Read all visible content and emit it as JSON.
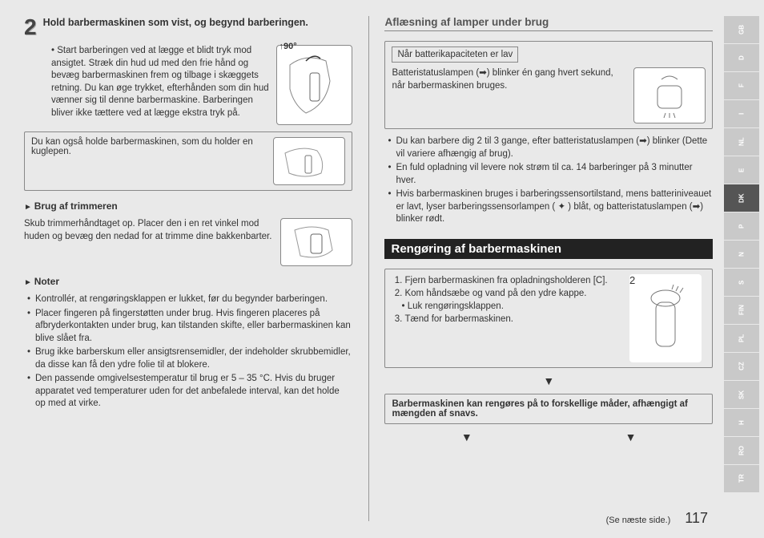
{
  "left": {
    "step_number": "2",
    "step_title": "Hold barbermaskinen som vist, og begynd barberingen.",
    "step_bullet": "Start barberingen ved at lægge et blidt tryk mod ansigtet. Stræk din hud ud med den frie hånd og bevæg barbermaskinen frem og tilbage i skæggets retning. Du kan øge trykket, efterhånden som din hud vænner sig til denne barbermaskine. Barberingen bliver ikke tættere ved at lægge ekstra tryk på.",
    "angle": "90°",
    "pen_note": "Du kan også holde barbermaskinen, som du holder en kuglepen.",
    "trimmer_head": "Brug af trimmeren",
    "trimmer_text": "Skub trimmerhåndtaget op. Placer den i en ret vinkel mod huden og bevæg den nedad for at trimme dine bakkenbarter.",
    "notes_head": "Noter",
    "notes": [
      "Kontrollér, at rengøringsklappen er lukket, før du begynder barberingen.",
      "Placer fingeren på fingerstøtten under brug. Hvis fingeren placeres på afbryderkontakten under brug, kan tilstanden skifte, eller barbermaskinen kan blive slået fra.",
      "Brug ikke barberskum eller ansigtsrensemidler, der indeholder skrubbemidler, da disse kan få den ydre folie til at blokere.",
      "Den passende omgivelsestemperatur til brug er 5 – 35 °C. Hvis du bruger apparatet ved temperaturer uden for det anbefalede interval, kan det holde op med at virke."
    ]
  },
  "right": {
    "lamps_title": "Aflæsning af lamper under brug",
    "battery_low_label": "Når batterikapaciteten er lav",
    "battery_text": "Batteristatuslampen (➡) blinker én gang hvert sekund, når barbermaskinen bruges.",
    "battery_bullets": [
      "Du kan barbere dig 2 til 3 gange, efter batteristatuslampen (➡) blinker (Dette vil variere afhængig af brug).",
      "En fuld opladning vil levere nok strøm til ca. 14 barberinger på 3 minutter hver.",
      "Hvis barbermaskinen bruges i barberingssensortilstand, mens batteriniveauet er lavt, lyser barberingssensorlampen ( ✦ ) blåt, og batteristatuslampen (➡) blinker rødt."
    ],
    "cleaning_title": "Rengøring af barbermaskinen",
    "cleaning_steps_1": "Fjern barbermaskinen fra opladningsholderen [C].",
    "cleaning_steps_2": "Kom håndsæbe og vand på den ydre kappe.",
    "cleaning_steps_2a": "Luk rengøringsklappen.",
    "cleaning_steps_3": "Tænd for barbermaskinen.",
    "cleaning_illus_num": "2",
    "two_ways": "Barbermaskinen kan rengøres på to forskellige måder, afhængigt af mængden af snavs."
  },
  "footer": {
    "see_next": "(Se næste side.)",
    "page": "117"
  },
  "langs": [
    "GB",
    "D",
    "F",
    "I",
    "NL",
    "E",
    "DK",
    "P",
    "N",
    "S",
    "FIN",
    "PL",
    "CZ",
    "SK",
    "H",
    "RO",
    "TR"
  ],
  "active_lang": "DK"
}
